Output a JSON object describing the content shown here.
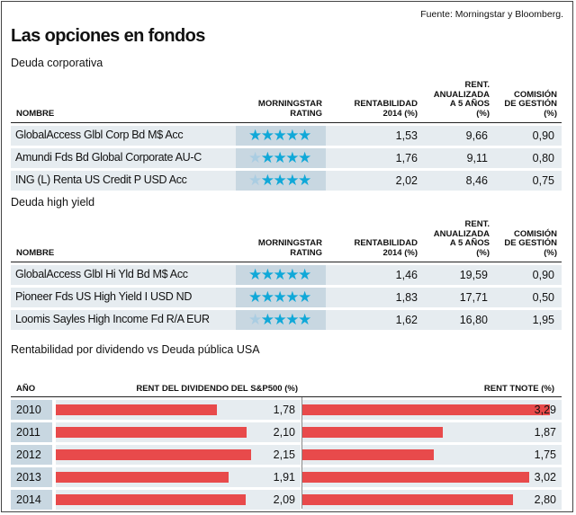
{
  "source": "Fuente: Morningstar y Bloomberg.",
  "title": "Las opciones en fondos",
  "tables": [
    {
      "section": "Deuda corporativa",
      "headers": {
        "name": "NOMBRE",
        "rating": [
          "MORNINGSTAR",
          "RATING"
        ],
        "rent": [
          "RENTABILIDAD",
          "2014 (%)"
        ],
        "anual": [
          "RENT.",
          "ANUALIZADA",
          "A 5 AÑOS",
          "(%)"
        ],
        "comision": [
          "COMISIÓN",
          "DE GESTIÓN",
          "(%)"
        ]
      },
      "rows": [
        {
          "name": "GlobalAccess Glbl Corp Bd M$ Acc",
          "stars": 5,
          "rent": "1,53",
          "anual": "9,66",
          "comision": "0,90"
        },
        {
          "name": "Amundi Fds Bd Global Corporate AU-C",
          "stars": 4,
          "rent": "1,76",
          "anual": "9,11",
          "comision": "0,80"
        },
        {
          "name": "ING (L) Renta US Credit P USD Acc",
          "stars": 4,
          "rent": "2,02",
          "anual": "8,46",
          "comision": "0,75"
        }
      ]
    },
    {
      "section": "Deuda high yield",
      "headers": {
        "name": "NOMBRE",
        "rating": [
          "MORNINGSTAR",
          "RATING"
        ],
        "rent": [
          "RENTABILIDAD",
          "2014 (%)"
        ],
        "anual": [
          "RENT.",
          "ANUALIZADA",
          "A 5 AÑOS",
          "(%)"
        ],
        "comision": [
          "COMISIÓN",
          "DE GESTIÓN",
          "(%)"
        ]
      },
      "rows": [
        {
          "name": "GlobalAccess Glbl Hi Yld Bd M$ Acc",
          "stars": 5,
          "rent": "1,46",
          "anual": "19,59",
          "comision": "0,90"
        },
        {
          "name": "Pioneer Fds US High Yield I USD ND",
          "stars": 5,
          "rent": "1,83",
          "anual": "17,71",
          "comision": "0,50"
        },
        {
          "name": "Loomis Sayles High Income Fd R/A EUR",
          "stars": 4,
          "rent": "1,62",
          "anual": "16,80",
          "comision": "1,95"
        }
      ]
    }
  ],
  "chart_data": {
    "type": "bar",
    "title": "Rentabilidad por dividendo vs Deuda pública USA",
    "category_label": "AÑO",
    "categories": [
      "2010",
      "2011",
      "2012",
      "2013",
      "2014"
    ],
    "series": [
      {
        "name": "RENT DEL DIVIDENDO DEL S&P500 (%)",
        "values": [
          1.78,
          2.1,
          2.15,
          1.91,
          2.09
        ],
        "labels": [
          "1,78",
          "2,10",
          "2,15",
          "1,91",
          "2,09"
        ]
      },
      {
        "name": "RENT TNOTE (%)",
        "values": [
          3.29,
          1.87,
          1.75,
          3.02,
          2.8
        ],
        "labels": [
          "3,29",
          "1,87",
          "1,75",
          "3,02",
          "2,80"
        ]
      }
    ],
    "bar_color": "#e84a4b",
    "star_color": "#10a8d8"
  }
}
